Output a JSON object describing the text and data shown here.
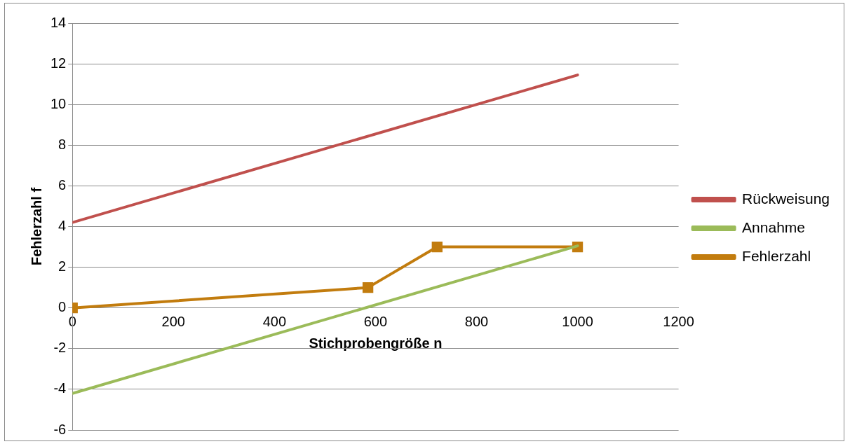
{
  "chart_data": {
    "type": "line",
    "xlabel": "Stichprobengröße n",
    "ylabel": "Fehlerzahl f",
    "xlim": [
      0,
      1200
    ],
    "xticks": [
      0,
      200,
      400,
      600,
      800,
      1000,
      1200
    ],
    "ylim": [
      -6,
      14
    ],
    "yticks": [
      -6,
      -4,
      -2,
      0,
      2,
      4,
      6,
      8,
      10,
      12,
      14
    ],
    "grid": "y",
    "legend": "right",
    "line_style": "solid",
    "series": [
      {
        "name": "Rückweisung",
        "color": "#c0504d",
        "marker": "none",
        "x": [
          0,
          1000
        ],
        "values": [
          4.2,
          11.45
        ]
      },
      {
        "name": "Annahme",
        "color": "#9bbb59",
        "marker": "none",
        "x": [
          0,
          1000
        ],
        "values": [
          -4.2,
          3.05
        ]
      },
      {
        "name": "Fehlerzahl",
        "color": "#c27c0e",
        "marker": "square",
        "x": [
          0,
          585,
          722,
          1000
        ],
        "values": [
          0,
          1,
          3,
          3
        ]
      }
    ]
  }
}
